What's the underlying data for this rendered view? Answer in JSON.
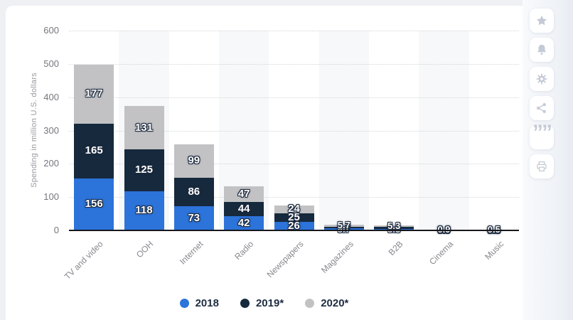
{
  "chart_data": {
    "type": "bar",
    "stacked": true,
    "categories": [
      "TV and video",
      "OOH",
      "Internet",
      "Radio",
      "Newspapers",
      "Magazines",
      "B2B",
      "Cinema",
      "Music"
    ],
    "series": [
      {
        "name": "2018",
        "color": "#2c73da",
        "values": [
          156,
          118,
          73,
          42,
          26,
          5.7,
          5.3,
          0.9,
          0.5
        ]
      },
      {
        "name": "2019*",
        "color": "#16293d",
        "values": [
          165,
          125,
          86,
          44,
          25,
          5.7,
          5.3,
          0.9,
          0.5
        ]
      },
      {
        "name": "2020*",
        "color": "#c2c2c4",
        "values": [
          177,
          131,
          99,
          47,
          24,
          5.7,
          5.3,
          0.9,
          0.5
        ]
      }
    ],
    "xlabel": "",
    "ylabel": "Spending in million U.S. dollars",
    "ylim": [
      0,
      600
    ],
    "y_ticks": [
      0,
      100,
      200,
      300,
      400,
      500,
      600
    ],
    "grid": "horizontal-dotted",
    "legend_position": "bottom",
    "value_labels": "white bold with dark outline inside segments"
  },
  "legend": {
    "items": [
      {
        "label": "2018",
        "color": "#2c73da"
      },
      {
        "label": "2019*",
        "color": "#16293d"
      },
      {
        "label": "2020*",
        "color": "#c2c2c4"
      }
    ]
  },
  "sidebar": {
    "buttons": [
      {
        "icon": "star-icon"
      },
      {
        "icon": "bell-icon"
      },
      {
        "icon": "gear-icon"
      },
      {
        "icon": "share-icon"
      },
      {
        "icon": "quote-icon"
      },
      {
        "icon": "printer-icon"
      }
    ]
  },
  "colors": {
    "page_background": "#eef0f4",
    "card_background": "#ffffff",
    "column_band": "#f7f8fa",
    "axis_line": "#17171c",
    "tick_text": "#76767e",
    "category_text": "#87878f",
    "sidebar_icon": "#c4cad6",
    "label_outline": "#1c2a3e"
  }
}
